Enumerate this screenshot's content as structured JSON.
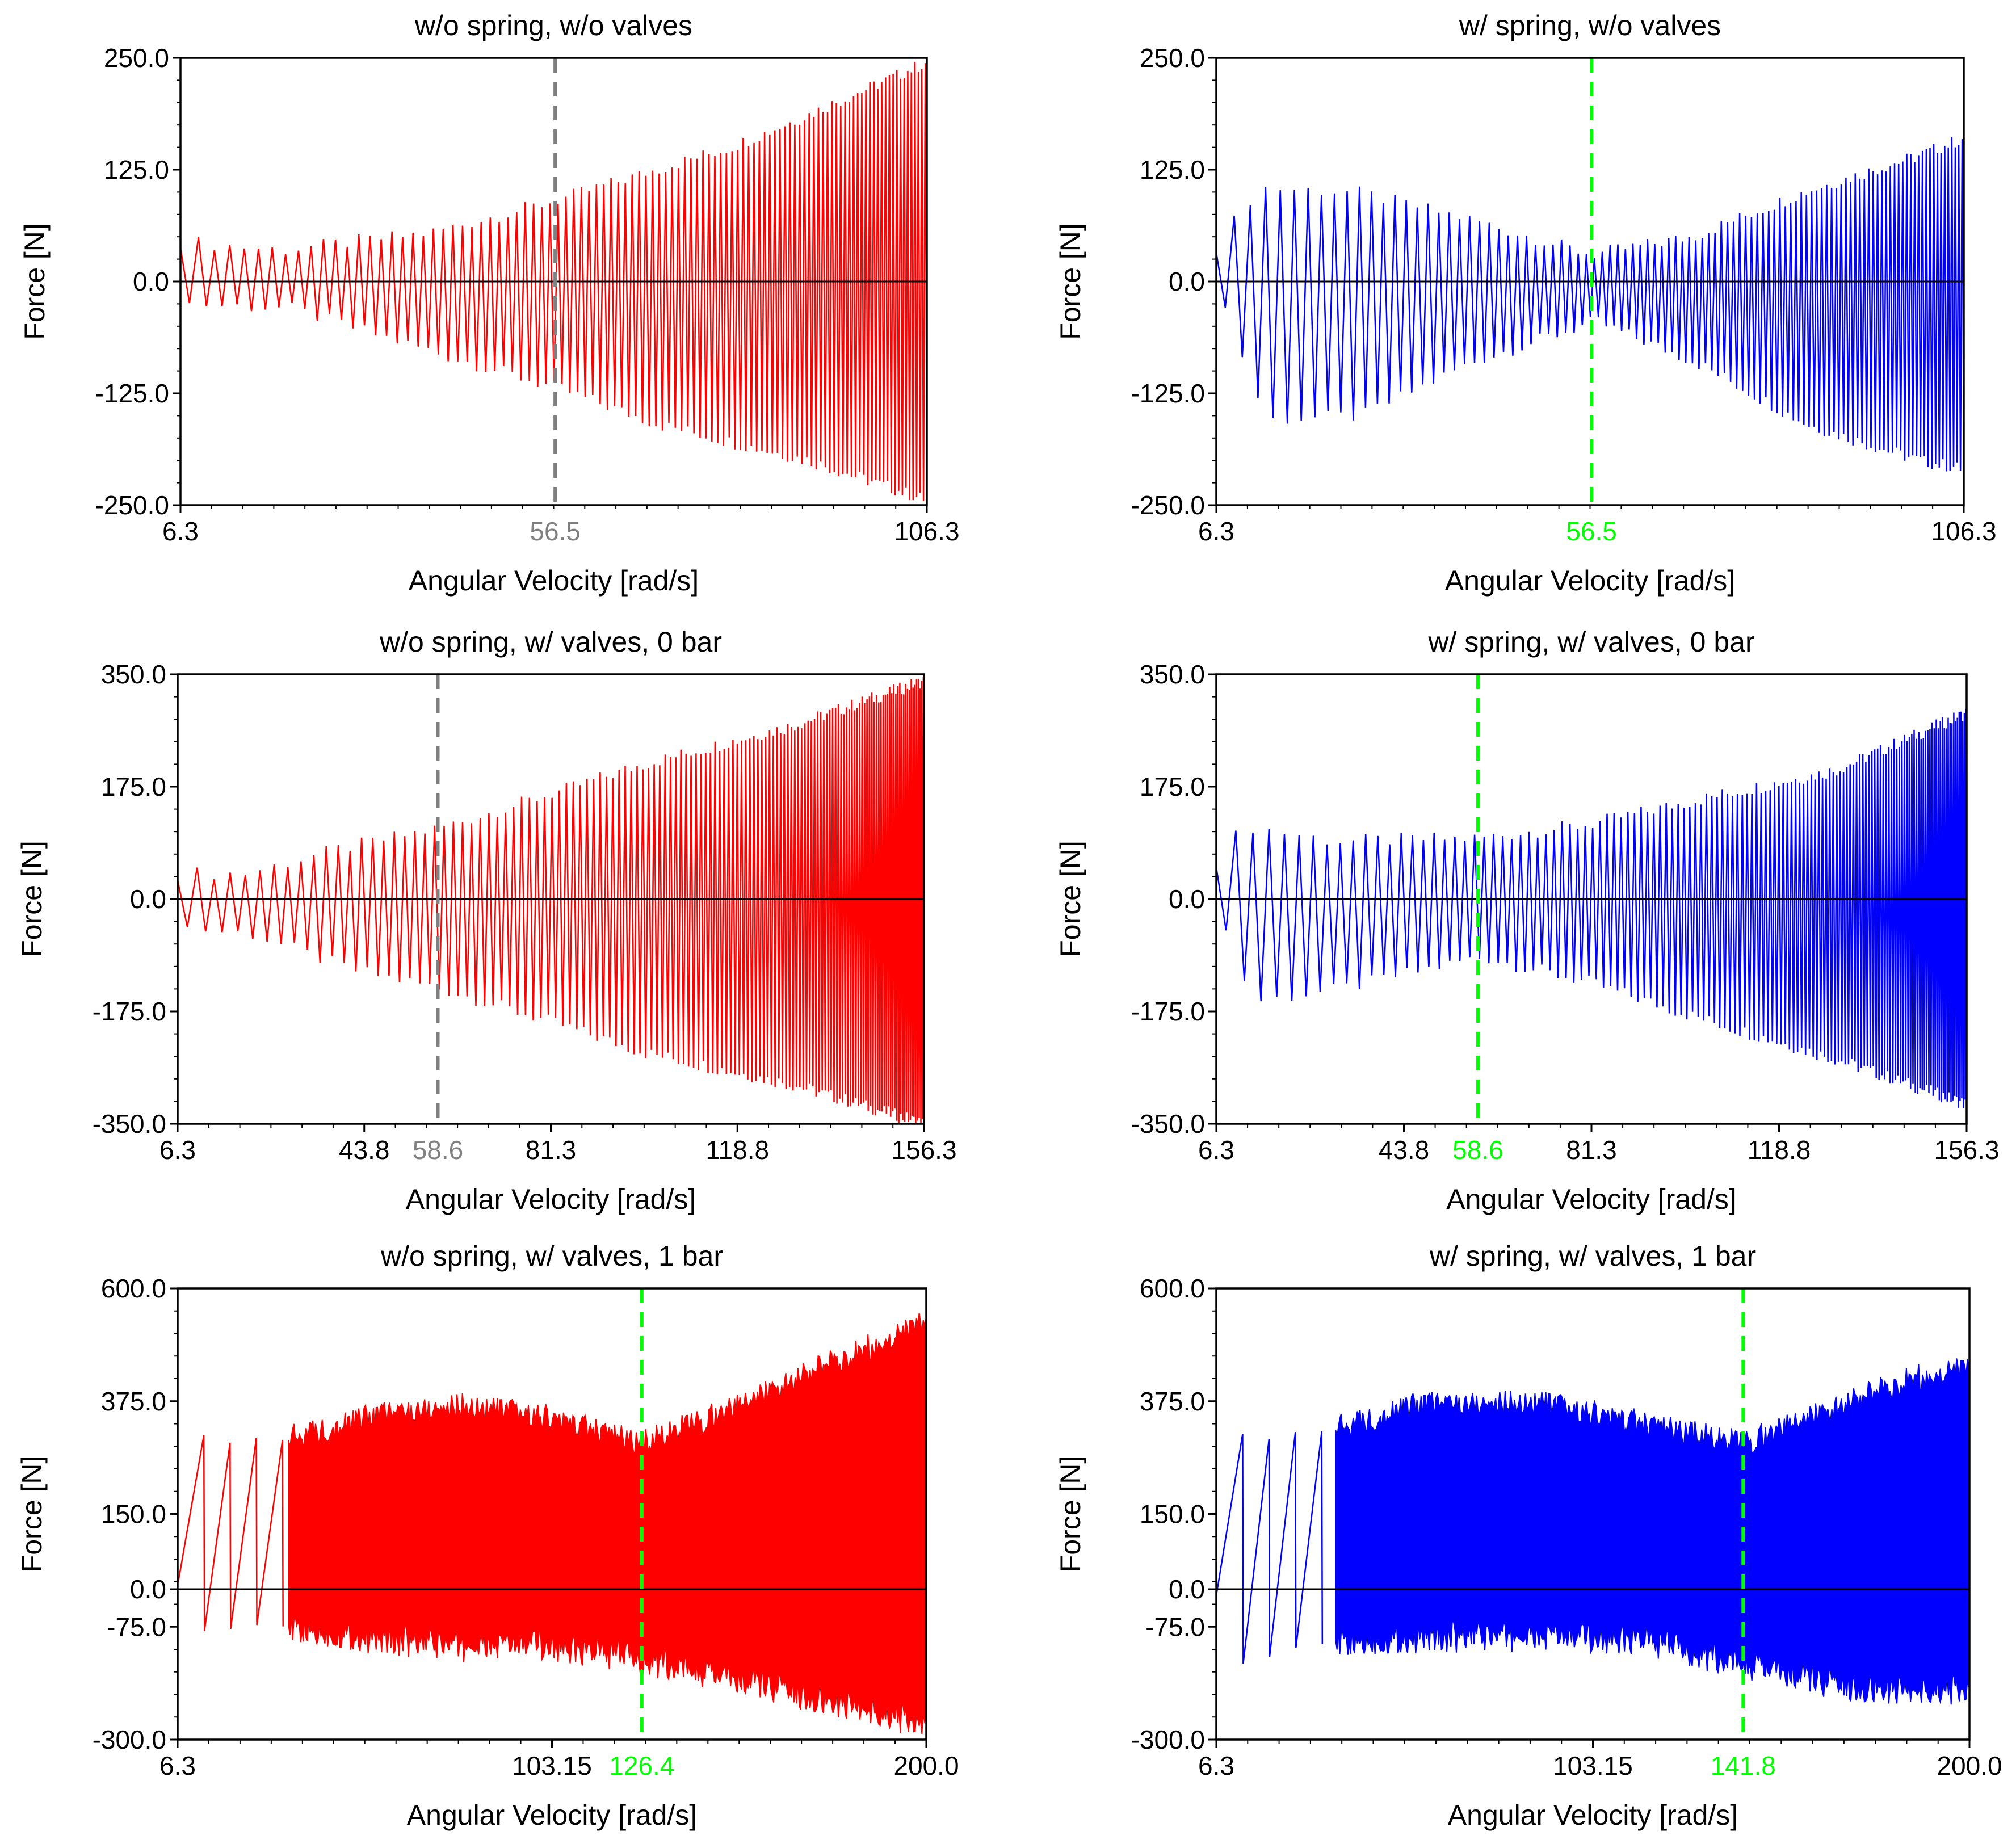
{
  "figure": {
    "description": "Six panels of force vs. angular velocity sweeps",
    "colors": {
      "without_spring": "#ff0000",
      "with_spring": "#0000ff",
      "marker_gray": "#808080",
      "marker_green": "#00ff00",
      "axis": "#000000"
    }
  },
  "chart_data": [
    {
      "id": "p1",
      "type": "line",
      "title": "w/o spring, w/o valves",
      "xlabel": "Angular Velocity [rad/s]",
      "ylabel": "Force [N]",
      "xlim": [
        6.3,
        106.3
      ],
      "ylim": [
        -250,
        250
      ],
      "yticks": [
        "250.0",
        "125.0",
        "0.0",
        "-125.0",
        "-250.0"
      ],
      "xticks": [
        {
          "value": 6.3,
          "label": "6.3"
        },
        {
          "value": 106.3,
          "label": "106.3"
        }
      ],
      "marker": {
        "value": 56.5,
        "label": "56.5",
        "color": "#808080"
      },
      "series": [
        {
          "name": "force",
          "color": "#ff0000",
          "mode": "swing",
          "period": [
            2.4,
            0.45
          ],
          "upper_env": [
            [
              6.3,
              45
            ],
            [
              20,
              35
            ],
            [
              40,
              55
            ],
            [
              56.5,
              90
            ],
            [
              70,
              125
            ],
            [
              80,
              150
            ],
            [
              90,
              185
            ],
            [
              106.3,
              245
            ]
          ],
          "lower_env": [
            [
              6.3,
              -25
            ],
            [
              20,
              -30
            ],
            [
              40,
              -80
            ],
            [
              56.5,
              -120
            ],
            [
              70,
              -160
            ],
            [
              90,
              -200
            ],
            [
              106.3,
              -245
            ]
          ]
        }
      ]
    },
    {
      "id": "p2",
      "type": "line",
      "title": "w/ spring, w/o valves",
      "xlabel": "Angular Velocity [rad/s]",
      "ylabel": "Force [N]",
      "xlim": [
        6.3,
        106.3
      ],
      "ylim": [
        -250,
        250
      ],
      "yticks": [
        "250.0",
        "125.0",
        "0.0",
        "-125.0",
        "-250.0"
      ],
      "xticks": [
        {
          "value": 6.3,
          "label": "6.3"
        },
        {
          "value": 106.3,
          "label": "106.3"
        }
      ],
      "marker": {
        "value": 56.5,
        "label": "56.5",
        "color": "#00ff00"
      },
      "series": [
        {
          "name": "force",
          "color": "#0000ff",
          "mode": "swing",
          "period": [
            2.4,
            0.45
          ],
          "upper_env": [
            [
              6.3,
              40
            ],
            [
              12,
              105
            ],
            [
              25,
              100
            ],
            [
              40,
              70
            ],
            [
              56.5,
              30
            ],
            [
              70,
              50
            ],
            [
              85,
              100
            ],
            [
              100,
              140
            ],
            [
              106.3,
              160
            ]
          ],
          "lower_env": [
            [
              6.3,
              -30
            ],
            [
              12,
              -155
            ],
            [
              25,
              -150
            ],
            [
              40,
              -90
            ],
            [
              56.5,
              -45
            ],
            [
              70,
              -90
            ],
            [
              85,
              -160
            ],
            [
              100,
              -200
            ],
            [
              106.3,
              -210
            ]
          ]
        }
      ]
    },
    {
      "id": "p3",
      "type": "line",
      "title": "w/o spring, w/ valves, 0 bar",
      "xlabel": "Angular Velocity [rad/s]",
      "ylabel": "Force [N]",
      "xlim": [
        6.3,
        156.3
      ],
      "ylim": [
        -350,
        350
      ],
      "yticks": [
        "350.0",
        "175.0",
        "0.0",
        "-175.0",
        "-350.0"
      ],
      "xticks": [
        {
          "value": 6.3,
          "label": "6.3"
        },
        {
          "value": 43.8,
          "label": "43.8"
        },
        {
          "value": 81.3,
          "label": "81.3"
        },
        {
          "value": 118.8,
          "label": "118.8"
        },
        {
          "value": 156.3,
          "label": "156.3"
        }
      ],
      "marker": {
        "value": 58.6,
        "label": "58.6",
        "color": "#808080"
      },
      "series": [
        {
          "name": "force",
          "color": "#ff0000",
          "mode": "swing",
          "period": [
            2.6,
            0.22
          ],
          "upper_env": [
            [
              6.3,
              40
            ],
            [
              20,
              40
            ],
            [
              40,
              80
            ],
            [
              58.6,
              110
            ],
            [
              80,
              160
            ],
            [
              100,
              210
            ],
            [
              130,
              270
            ],
            [
              156.3,
              340
            ]
          ],
          "lower_env": [
            [
              6.3,
              -45
            ],
            [
              20,
              -55
            ],
            [
              40,
              -110
            ],
            [
              58.6,
              -140
            ],
            [
              80,
              -190
            ],
            [
              100,
              -240
            ],
            [
              130,
              -290
            ],
            [
              156.3,
              -350
            ]
          ]
        }
      ]
    },
    {
      "id": "p4",
      "type": "line",
      "title": "w/ spring, w/ valves, 0 bar",
      "xlabel": "Angular Velocity [rad/s]",
      "ylabel": "Force [N]",
      "xlim": [
        6.3,
        156.3
      ],
      "ylim": [
        -350,
        350
      ],
      "yticks": [
        "350.0",
        "175.0",
        "0.0",
        "-175.0",
        "-350.0"
      ],
      "xticks": [
        {
          "value": 6.3,
          "label": "6.3"
        },
        {
          "value": 43.8,
          "label": "43.8"
        },
        {
          "value": 81.3,
          "label": "81.3"
        },
        {
          "value": 118.8,
          "label": "118.8"
        },
        {
          "value": 156.3,
          "label": "156.3"
        }
      ],
      "marker": {
        "value": 58.6,
        "label": "58.6",
        "color": "#00ff00"
      },
      "series": [
        {
          "name": "force",
          "color": "#0000ff",
          "mode": "swing",
          "period": [
            2.6,
            0.22
          ],
          "upper_env": [
            [
              6.3,
              60
            ],
            [
              12,
              115
            ],
            [
              30,
              90
            ],
            [
              58.6,
              95
            ],
            [
              80,
              115
            ],
            [
              100,
              150
            ],
            [
              130,
              200
            ],
            [
              156.3,
              290
            ]
          ],
          "lower_env": [
            [
              6.3,
              -50
            ],
            [
              12,
              -160
            ],
            [
              30,
              -140
            ],
            [
              58.6,
              -90
            ],
            [
              80,
              -130
            ],
            [
              100,
              -180
            ],
            [
              130,
              -250
            ],
            [
              156.3,
              -320
            ]
          ]
        }
      ]
    },
    {
      "id": "p5",
      "type": "line",
      "title": "w/o spring, w/ valves, 1 bar",
      "xlabel": "Angular Velocity [rad/s]",
      "ylabel": "Force [N]",
      "xlim": [
        6.3,
        200.0
      ],
      "ylim": [
        -300,
        600
      ],
      "yticks": [
        "600.0",
        "375.0",
        "150.0",
        "0.0",
        "-75.0",
        "-300.0"
      ],
      "ytick_values": [
        600,
        375,
        150,
        0,
        -75,
        -300
      ],
      "xticks": [
        {
          "value": 6.3,
          "label": "6.3"
        },
        {
          "value": 103.15,
          "label": "103.15"
        },
        {
          "value": 200.0,
          "label": "200.0"
        }
      ],
      "marker": {
        "value": 126.4,
        "label": "126.4",
        "color": "#00ff00"
      },
      "series": [
        {
          "name": "force",
          "color": "#ff0000",
          "mode": "band",
          "fill_from": 35,
          "period": [
            3.5,
            0.18
          ],
          "upper_env": [
            [
              6.3,
              30
            ],
            [
              12,
              300
            ],
            [
              35,
              300
            ],
            [
              60,
              350
            ],
            [
              80,
              365
            ],
            [
              100,
              345
            ],
            [
              126.4,
              290
            ],
            [
              150,
              360
            ],
            [
              175,
              450
            ],
            [
              200,
              530
            ]
          ],
          "lower_env": [
            [
              6.3,
              20
            ],
            [
              12,
              -80
            ],
            [
              35,
              -80
            ],
            [
              60,
              -100
            ],
            [
              80,
              -115
            ],
            [
              100,
              -110
            ],
            [
              126.4,
              -140
            ],
            [
              150,
              -180
            ],
            [
              175,
              -220
            ],
            [
              200,
              -270
            ]
          ]
        }
      ]
    },
    {
      "id": "p6",
      "type": "line",
      "title": "w/ spring, w/ valves, 1 bar",
      "xlabel": "Angular Velocity [rad/s]",
      "ylabel": "Force [N]",
      "xlim": [
        6.3,
        200.0
      ],
      "ylim": [
        -300,
        600
      ],
      "yticks": [
        "600.0",
        "375.0",
        "150.0",
        "0.0",
        "-75.0",
        "-300.0"
      ],
      "ytick_values": [
        600,
        375,
        150,
        0,
        -75,
        -300
      ],
      "xticks": [
        {
          "value": 6.3,
          "label": "6.3"
        },
        {
          "value": 103.15,
          "label": "103.15"
        },
        {
          "value": 200.0,
          "label": "200.0"
        }
      ],
      "marker": {
        "value": 141.8,
        "label": "141.8",
        "color": "#00ff00"
      },
      "series": [
        {
          "name": "force",
          "color": "#0000ff",
          "mode": "band",
          "fill_from": 37,
          "period": [
            3.5,
            0.18
          ],
          "upper_env": [
            [
              6.3,
              20
            ],
            [
              10,
              300
            ],
            [
              37,
              320
            ],
            [
              60,
              370
            ],
            [
              90,
              370
            ],
            [
              115,
              330
            ],
            [
              141.8,
              290
            ],
            [
              165,
              360
            ],
            [
              185,
              420
            ],
            [
              200,
              440
            ]
          ],
          "lower_env": [
            [
              6.3,
              0
            ],
            [
              10,
              -150
            ],
            [
              37,
              -110
            ],
            [
              60,
              -95
            ],
            [
              90,
              -95
            ],
            [
              115,
              -100
            ],
            [
              141.8,
              -150
            ],
            [
              165,
              -190
            ],
            [
              185,
              -200
            ],
            [
              200,
              -200
            ]
          ]
        }
      ]
    }
  ]
}
